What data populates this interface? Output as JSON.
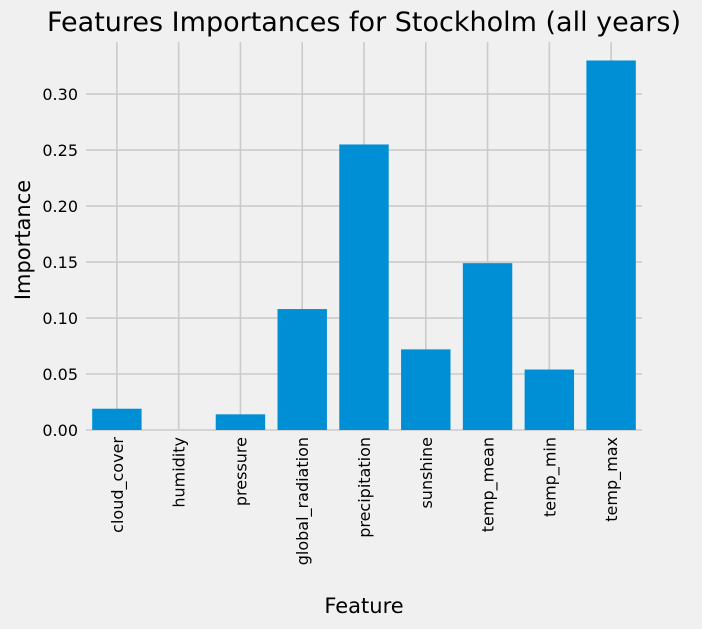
{
  "chart_data": {
    "type": "bar",
    "title": "Features Importances for Stockholm (all years)",
    "xlabel": "Feature",
    "ylabel": "Importance",
    "categories": [
      "cloud_cover",
      "humidity",
      "pressure",
      "global_radiation",
      "precipitation",
      "sunshine",
      "temp_mean",
      "temp_min",
      "temp_max"
    ],
    "values": [
      0.019,
      0.0,
      0.014,
      0.108,
      0.255,
      0.072,
      0.149,
      0.054,
      0.33
    ],
    "yticks": [
      0.0,
      0.05,
      0.1,
      0.15,
      0.2,
      0.25,
      0.3
    ],
    "ytick_labels": [
      "0.00",
      "0.05",
      "0.10",
      "0.15",
      "0.20",
      "0.25",
      "0.30"
    ],
    "ylim": [
      0,
      0.3465
    ],
    "grid": true,
    "style": "fivethirtyeight",
    "colors": {
      "bar": "#008fd5",
      "background": "#f0f0f0",
      "grid": "#cbcbcb",
      "text": "#000000"
    }
  }
}
